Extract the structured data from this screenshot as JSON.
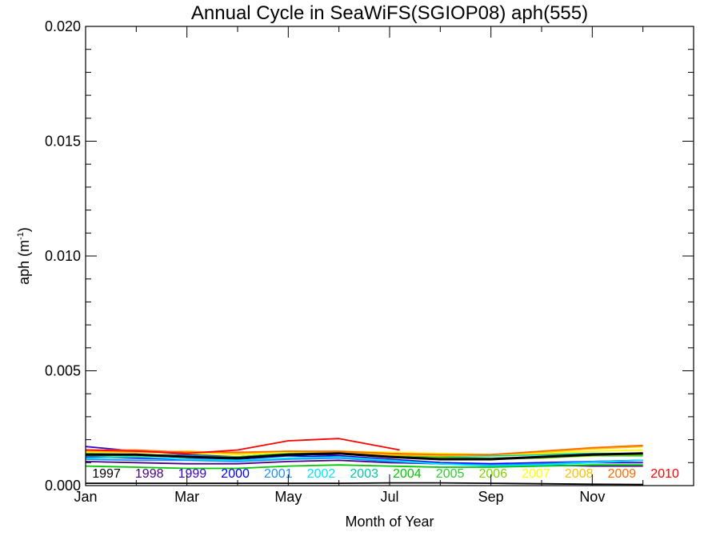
{
  "chart_data": {
    "type": "line",
    "title": "Annual Cycle in SeaWiFS(SGIOP08) aph(555)",
    "xlabel": "Month of Year",
    "ylabel": "aph (m",
    "ylabel_sup": "-1",
    "ylabel_close": ")",
    "x_ticks": [
      {
        "month": 1,
        "label": "Jan"
      },
      {
        "month": 3,
        "label": "Mar"
      },
      {
        "month": 5,
        "label": "May"
      },
      {
        "month": 7,
        "label": "Jul"
      },
      {
        "month": 9,
        "label": "Sep"
      },
      {
        "month": 11,
        "label": "Nov"
      }
    ],
    "y_ticks": [
      {
        "value": 0.0,
        "label": "0.000"
      },
      {
        "value": 0.005,
        "label": "0.005"
      },
      {
        "value": 0.01,
        "label": "0.010"
      },
      {
        "value": 0.015,
        "label": "0.015"
      },
      {
        "value": 0.02,
        "label": "0.020"
      }
    ],
    "xlim": [
      1,
      13
    ],
    "ylim": [
      0,
      0.02
    ],
    "legend_placement": "bottom-inside",
    "series": [
      {
        "name": "1997",
        "color": "#000000",
        "x": [
          1,
          2,
          3,
          4,
          5,
          6,
          7,
          8,
          9,
          10,
          11,
          12
        ],
        "values": [
          0.0001,
          0.0001,
          0.0001,
          0.0001,
          0.0001,
          0.0001,
          0.00012,
          0.00012,
          0.0001,
          8e-05,
          6e-05,
          5e-05
        ]
      },
      {
        "name": "1998",
        "color": "#4b0082",
        "x": [
          1,
          2,
          3,
          4,
          5,
          6,
          7,
          8,
          9,
          10,
          11,
          12
        ],
        "values": [
          0.00105,
          0.001,
          0.00095,
          0.00095,
          0.00105,
          0.0011,
          0.001,
          0.00095,
          0.0009,
          0.0009,
          0.00085,
          0.00085
        ]
      },
      {
        "name": "1999",
        "color": "#3a00d0",
        "x": [
          1,
          2,
          3,
          4,
          5,
          6,
          7,
          8,
          9,
          10,
          11,
          12
        ],
        "values": [
          0.0017,
          0.0015,
          0.00135,
          0.00125,
          0.0014,
          0.0013,
          0.00115,
          0.001,
          0.0009,
          0.00095,
          0.001,
          0.001
        ]
      },
      {
        "name": "2000",
        "color": "#0000ff",
        "x": [
          1,
          2,
          3,
          4,
          5,
          6,
          7,
          8,
          9,
          10,
          11,
          12
        ],
        "values": [
          0.00125,
          0.0012,
          0.00115,
          0.00115,
          0.0013,
          0.00125,
          0.0011,
          0.001,
          0.00095,
          0.001,
          0.00105,
          0.0011
        ]
      },
      {
        "name": "2001",
        "color": "#1e90ff",
        "x": [
          1,
          2,
          3,
          4,
          5,
          6,
          7,
          8,
          9,
          10,
          11,
          12
        ],
        "values": [
          0.00115,
          0.0011,
          0.0011,
          0.00105,
          0.00115,
          0.0012,
          0.00105,
          0.00095,
          0.0009,
          0.00095,
          0.00105,
          0.0011
        ]
      },
      {
        "name": "2002",
        "color": "#00e5ff",
        "x": [
          1,
          2,
          3,
          4,
          5,
          6,
          7,
          8,
          9,
          10,
          11,
          12
        ],
        "values": [
          0.0012,
          0.00125,
          0.00115,
          0.0011,
          0.0012,
          0.00125,
          0.0011,
          0.00095,
          0.00085,
          0.0009,
          0.001,
          0.0011
        ]
      },
      {
        "name": "2003",
        "color": "#00c8a0",
        "x": [
          1,
          2,
          3,
          4,
          5,
          6,
          7,
          8,
          9,
          10,
          11,
          12
        ],
        "values": [
          0.0014,
          0.00135,
          0.0013,
          0.00125,
          0.0014,
          0.00145,
          0.00135,
          0.0013,
          0.0013,
          0.00135,
          0.0014,
          0.0014
        ]
      },
      {
        "name": "2004",
        "color": "#00c800",
        "x": [
          1,
          2,
          3,
          4,
          5,
          6,
          7,
          8,
          9,
          10,
          11,
          12
        ],
        "values": [
          0.00085,
          0.0008,
          0.00075,
          0.00075,
          0.00085,
          0.0009,
          0.00085,
          0.0008,
          0.0008,
          0.00085,
          0.0009,
          0.0009
        ]
      },
      {
        "name": "2005",
        "color": "#32cd32",
        "x": [
          1,
          2,
          3,
          4,
          5,
          6,
          7,
          8,
          9,
          10,
          11,
          12
        ],
        "values": [
          0.0013,
          0.0013,
          0.00125,
          0.00125,
          0.0014,
          0.00145,
          0.00135,
          0.00125,
          0.0012,
          0.00125,
          0.0013,
          0.0013
        ]
      },
      {
        "name": "2006",
        "color": "#7fd400",
        "x": [
          1,
          2,
          3,
          4,
          5,
          6,
          7,
          8,
          9,
          10,
          11,
          12
        ],
        "values": [
          0.00135,
          0.0013,
          0.00125,
          0.0012,
          0.00135,
          0.0014,
          0.0013,
          0.0012,
          0.00115,
          0.0012,
          0.0013,
          0.00135
        ]
      },
      {
        "name": "2007",
        "color": "#ffff00",
        "x": [
          1,
          2,
          3,
          4,
          5,
          6,
          7,
          8,
          9,
          10,
          11,
          12
        ],
        "values": [
          0.00145,
          0.00145,
          0.0014,
          0.00135,
          0.00145,
          0.0015,
          0.00145,
          0.0014,
          0.00135,
          0.0014,
          0.0015,
          0.00155
        ]
      },
      {
        "name": "2008",
        "color": "#ffc000",
        "x": [
          1,
          2,
          3,
          4,
          5,
          6,
          7,
          8,
          9,
          10,
          11,
          12
        ],
        "values": [
          0.0015,
          0.00145,
          0.0015,
          0.0014,
          0.0015,
          0.00145,
          0.00135,
          0.0013,
          0.00135,
          0.00145,
          0.0016,
          0.0017
        ]
      },
      {
        "name": "2009",
        "color": "#ff6a00",
        "x": [
          1,
          2,
          3,
          4,
          5,
          6,
          7,
          8,
          9,
          10,
          11,
          12
        ],
        "values": [
          0.00155,
          0.00155,
          0.00145,
          0.00145,
          0.0015,
          0.0015,
          0.0014,
          0.00135,
          0.00135,
          0.0015,
          0.00165,
          0.00175
        ]
      },
      {
        "name": "2010",
        "color": "#ff0000",
        "x": [
          1,
          2,
          3,
          4,
          5,
          6,
          7.2
        ],
        "values": [
          0.00155,
          0.0015,
          0.0014,
          0.00155,
          0.00195,
          0.00205,
          0.00155
        ]
      },
      {
        "name": "",
        "color": "#000000",
        "width": 3,
        "x": [
          1,
          2,
          3,
          4,
          5,
          6,
          7,
          8,
          9,
          10,
          11,
          12
        ],
        "values": [
          0.00135,
          0.00135,
          0.00125,
          0.0012,
          0.00135,
          0.0014,
          0.00125,
          0.00115,
          0.00115,
          0.00125,
          0.00135,
          0.0014
        ]
      }
    ]
  }
}
